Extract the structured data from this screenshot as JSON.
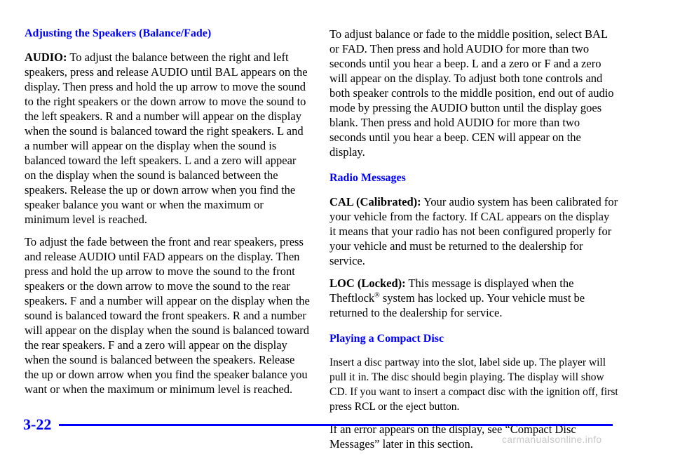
{
  "left": {
    "heading": "Adjusting the Speakers (Balance/Fade)",
    "p1_lead": "AUDIO:",
    "p1_text": " To adjust the balance between the right and left speakers, press and release AUDIO until BAL appears on the display. Then press and hold the up arrow to move the sound to the right speakers or the down arrow to move the sound to the left speakers. R and a number will appear on the display when the sound is balanced toward the right speakers. L and a number will appear on the display when the sound is balanced toward the left speakers. L and a zero will appear on the display when the sound is balanced between the speakers. Release the up or down arrow when you find the speaker balance you want or when the maximum or minimum level is reached.",
    "p2": "To adjust the fade between the front and rear speakers, press and release AUDIO until FAD appears on the display. Then press and hold the up arrow to move the sound to the front speakers or the down arrow to move the sound to the rear speakers. F and a number will appear on the display when the sound is balanced toward the front speakers. R and a number will appear on the display when the sound is balanced toward the rear speakers. F and a zero will appear on the display when the sound is balanced between the speakers. Release the up or down arrow when you find the speaker balance you want or when the maximum or minimum level is reached."
  },
  "right": {
    "p1": "To adjust balance or fade to the middle position, select BAL or FAD. Then press and hold AUDIO for more than two seconds until you hear a beep. L and a zero or F and a zero will appear on the display. To adjust both tone controls and both speaker controls to the middle position, end out of audio mode by pressing the AUDIO button until the display goes blank. Then press and hold AUDIO for more than two seconds until you hear a beep. CEN will appear on the display.",
    "heading_radio": "Radio Messages",
    "cal_lead": "CAL (Calibrated):",
    "cal_text": " Your audio system has been calibrated for your vehicle from the factory. If CAL appears on the display it means that your radio has not been configured properly for your vehicle and must be returned to the dealership for service.",
    "loc_lead": "LOC (Locked):",
    "loc_text_a": " This message is displayed when the Theftlock",
    "loc_reg": "®",
    "loc_text_b": " system has locked up. Your vehicle must be returned to the dealership for service.",
    "heading_cd": "Playing a Compact Disc",
    "cd_p1": "Insert a disc partway into the slot, label side up. The player will pull it in. The disc should begin playing. The display will show CD. If you want to insert a compact disc with the ignition off, first press RCL or the eject button.",
    "cd_p2": "If an error appears on the display, see “Compact Disc Messages” later in this section."
  },
  "footer": {
    "page_number": "3-22",
    "watermark": "carmanualsonline.info"
  },
  "colors": {
    "accent": "#0000ff",
    "text": "#000000",
    "watermark": "#c8c8c8"
  }
}
